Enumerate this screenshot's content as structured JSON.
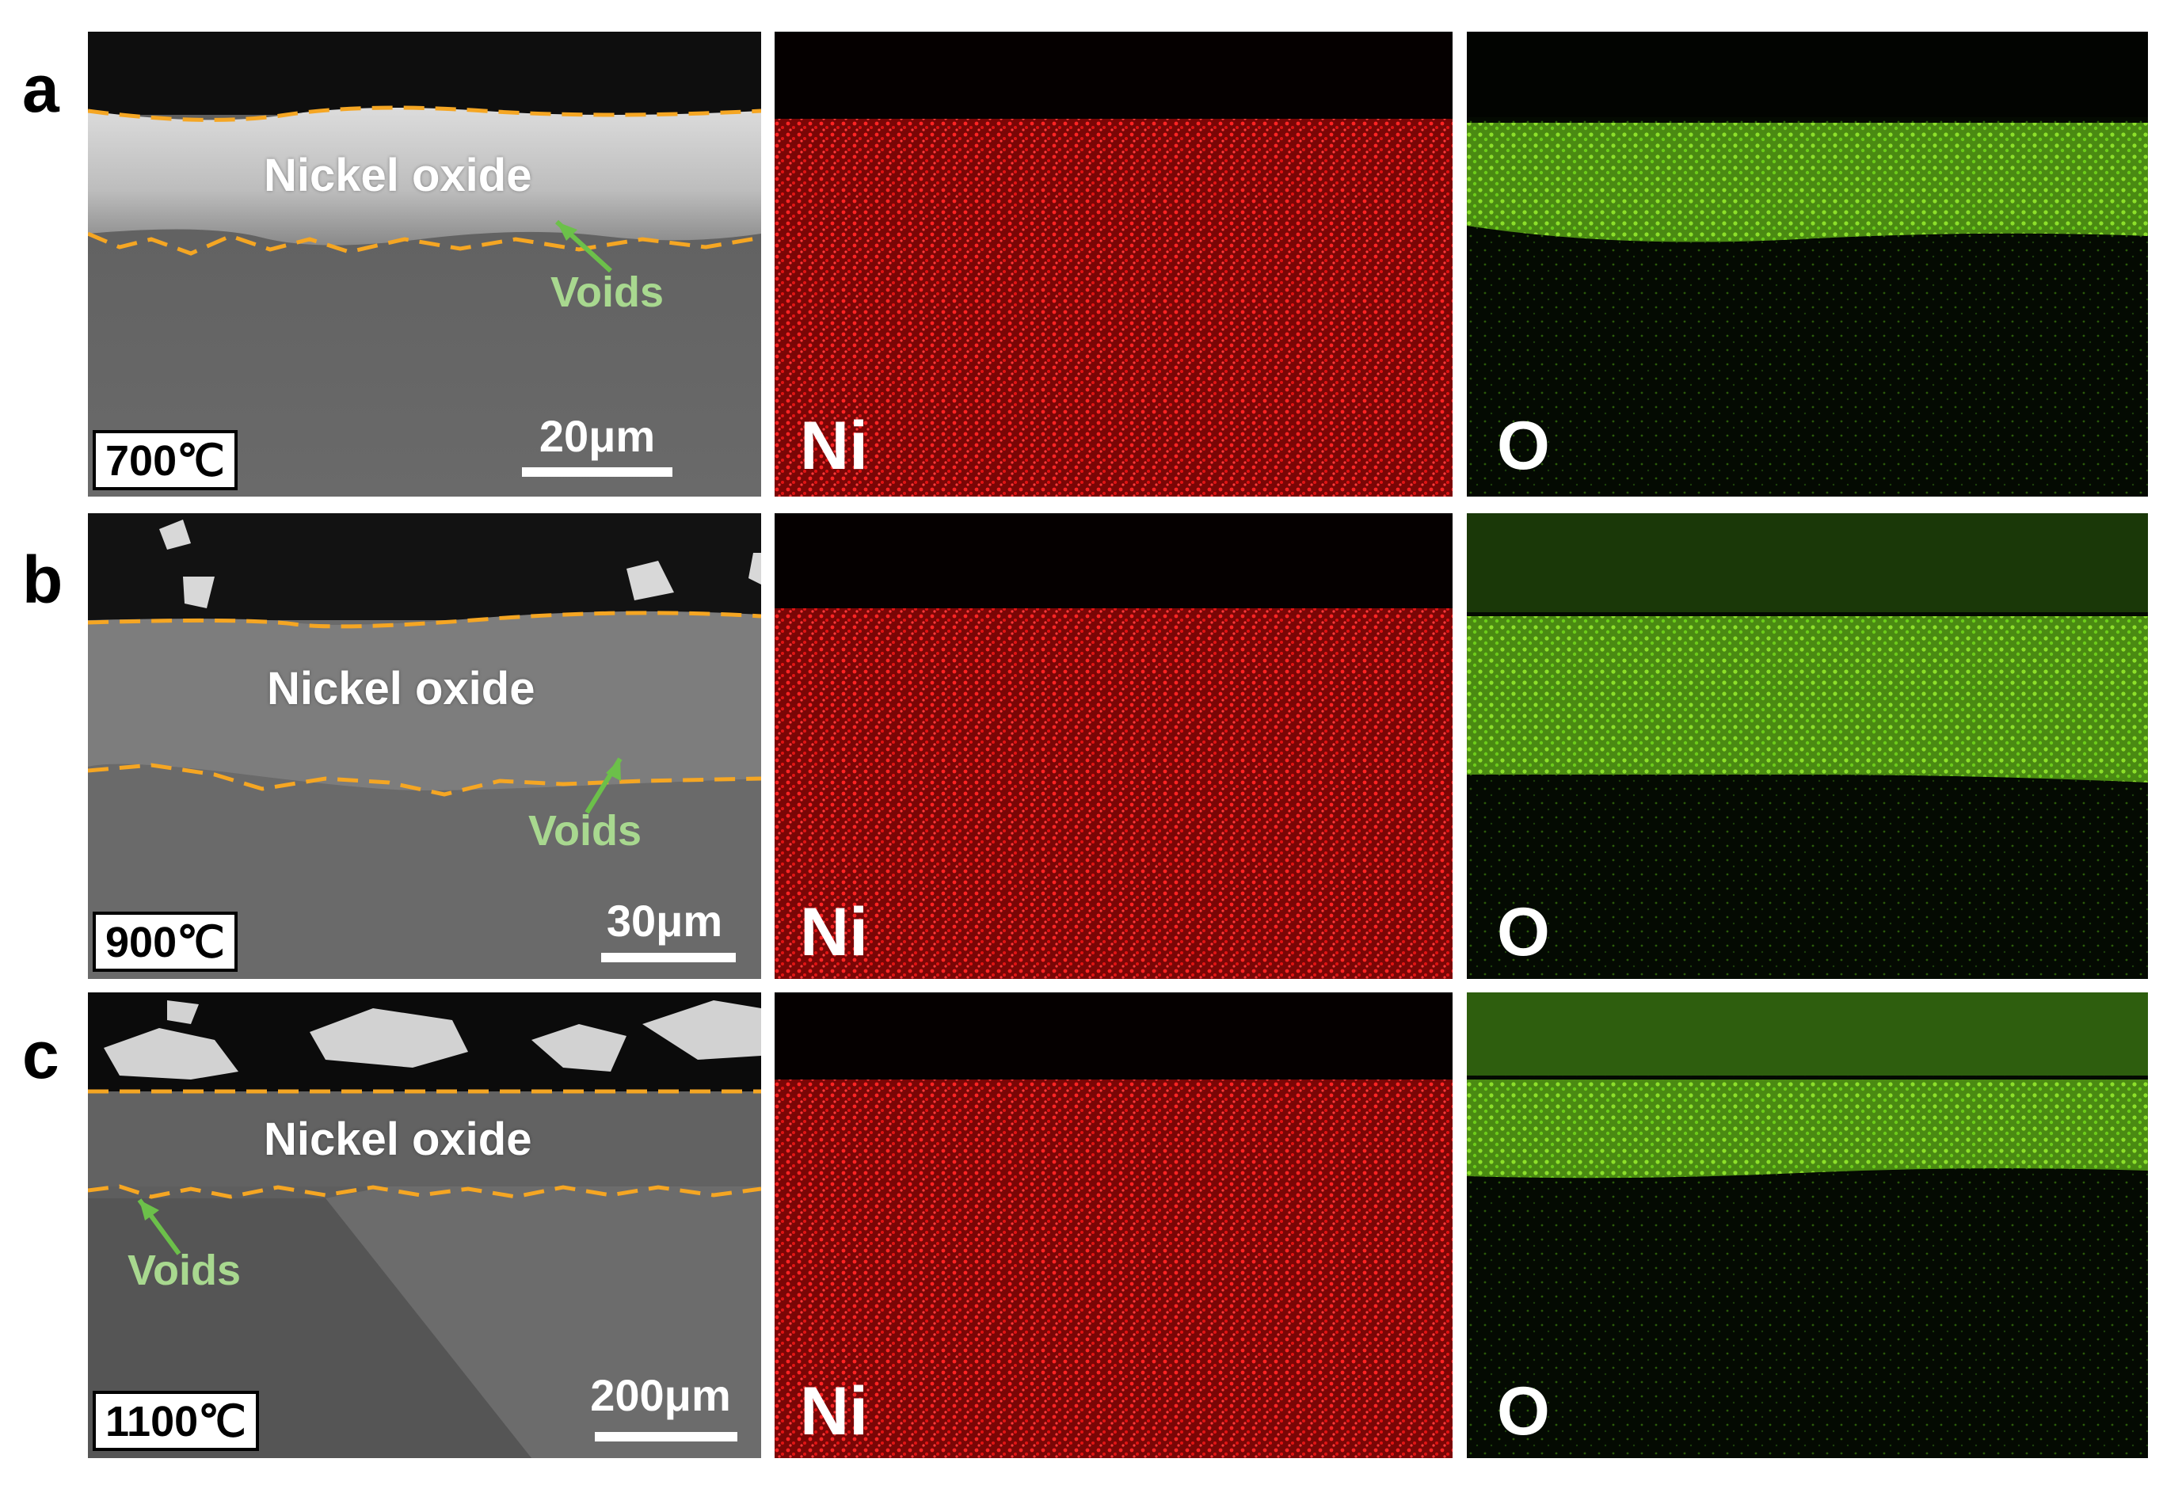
{
  "rows": [
    {
      "letter": "a",
      "oxide_label": "Nickel oxide",
      "voids_label": "Voids",
      "temperature": "700℃",
      "scale_bar": "20μm",
      "map_labels": [
        "Ni",
        "O"
      ]
    },
    {
      "letter": "b",
      "oxide_label": "Nickel oxide",
      "voids_label": "Voids",
      "temperature": "900℃",
      "scale_bar": "30μm",
      "map_labels": [
        "Ni",
        "O"
      ]
    },
    {
      "letter": "c",
      "oxide_label": "Nickel oxide",
      "voids_label": "Voids",
      "temperature": "1100℃",
      "scale_bar": "200μm",
      "map_labels": [
        "Ni",
        "O"
      ]
    }
  ],
  "colors": {
    "interface_dash": "#f5a623",
    "voids_arrow": "#6cc04a",
    "ni_map": "#e01010",
    "o_map": "#6ccc1a"
  }
}
